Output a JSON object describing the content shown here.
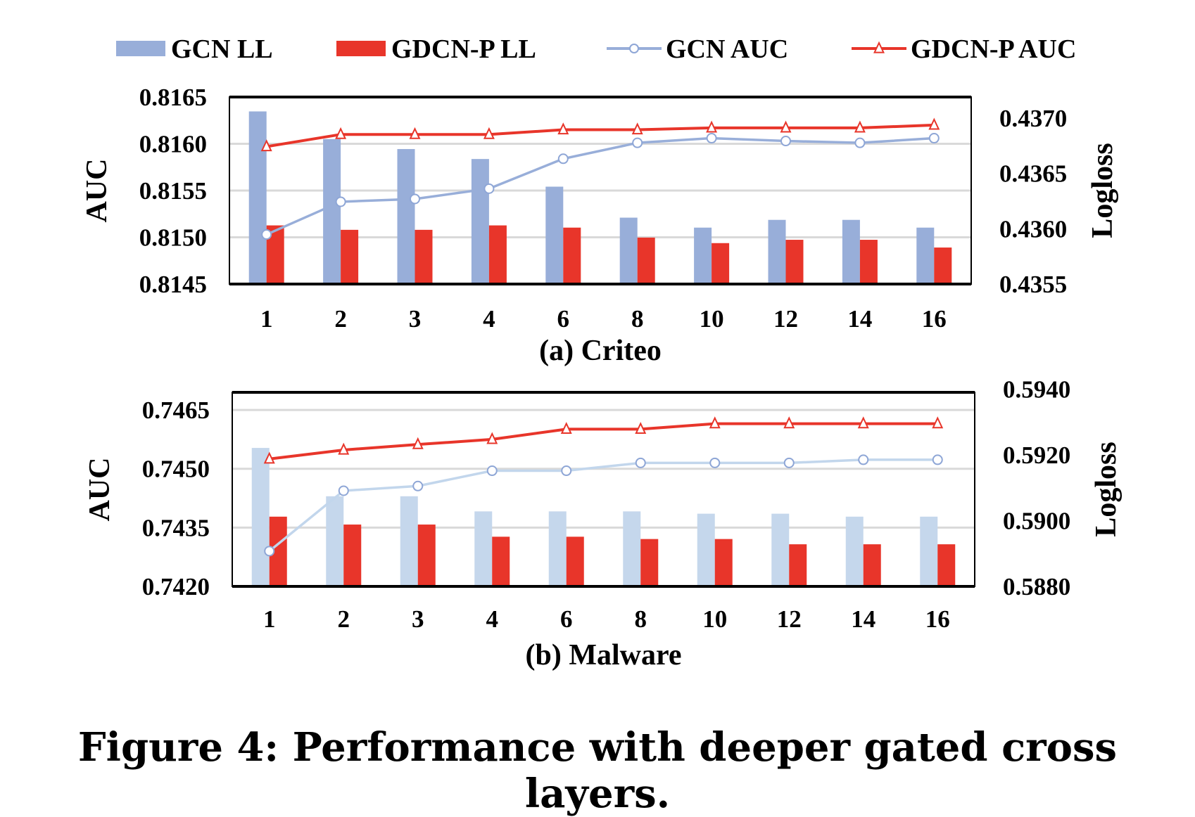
{
  "legend": [
    {
      "name": "GCN LL",
      "kind": "bar",
      "color": "#98aed9"
    },
    {
      "name": "GDCN-P LL",
      "kind": "bar",
      "color": "#e8352a"
    },
    {
      "name": "GCN AUC",
      "kind": "line-circle",
      "color": "#98aed9"
    },
    {
      "name": "GDCN-P AUC",
      "kind": "line-triangle",
      "color": "#e8352a"
    }
  ],
  "caption": "Figure 4: Performance with deeper gated cross layers.",
  "chart_data": [
    {
      "type": "bar+line",
      "title": "(a) Criteo",
      "ylabel": "AUC",
      "y2label": "Logloss",
      "categories": [
        "1",
        "2",
        "3",
        "4",
        "6",
        "8",
        "10",
        "12",
        "14",
        "16"
      ],
      "ylim": [
        0.8145,
        0.8165
      ],
      "yticks": [
        "0.8145",
        "0.8150",
        "0.8155",
        "0.8160",
        "0.8165"
      ],
      "y2lim": [
        0.4355,
        0.43719
      ],
      "y2ticks": [
        "0.4355",
        "0.4360",
        "0.4365",
        "0.4370"
      ],
      "grid": true,
      "bar_colors": [
        "#98aed9",
        "#e8352a"
      ],
      "line_colors": [
        "#98aed9",
        "#e8352a"
      ],
      "bars": [
        {
          "name": "GCN LL",
          "axis": "right",
          "values": [
            0.43706,
            0.43681,
            0.43672,
            0.43663,
            0.43638,
            0.4361,
            0.43601,
            0.43608,
            0.43608,
            0.43601
          ]
        },
        {
          "name": "GDCN-P LL",
          "axis": "right",
          "values": [
            0.43603,
            0.43599,
            0.43599,
            0.43603,
            0.43601,
            0.43592,
            0.43587,
            0.4359,
            0.4359,
            0.43583
          ]
        }
      ],
      "lines": [
        {
          "name": "GCN AUC",
          "axis": "left",
          "marker": "circle",
          "values": [
            0.81503,
            0.81538,
            0.81541,
            0.81552,
            0.81584,
            0.81601,
            0.81606,
            0.81603,
            0.81601,
            0.81606
          ]
        },
        {
          "name": "GDCN-P AUC",
          "axis": "left",
          "marker": "triangle",
          "values": [
            0.81597,
            0.8161,
            0.8161,
            0.8161,
            0.81615,
            0.81615,
            0.81617,
            0.81617,
            0.81617,
            0.8162
          ]
        }
      ]
    },
    {
      "type": "bar+line",
      "title": "(b) Malware",
      "ylabel": "AUC",
      "y2label": "Logloss",
      "categories": [
        "1",
        "2",
        "3",
        "4",
        "6",
        "8",
        "10",
        "12",
        "14",
        "16"
      ],
      "ylim": [
        0.742,
        0.74695
      ],
      "yticks": [
        "0.7420",
        "0.7435",
        "0.7450",
        "0.7465"
      ],
      "y2lim": [
        0.588,
        0.5939
      ],
      "y2ticks": [
        "0.5880",
        "0.5900",
        "0.5920",
        "0.5940"
      ],
      "grid": true,
      "bar_colors": [
        "#c5d7ec",
        "#e8352a"
      ],
      "line_colors": [
        "#c2d6ec",
        "#e8352a"
      ],
      "bars": [
        {
          "name": "GCN LL",
          "axis": "right",
          "values": [
            0.59221,
            0.59074,
            0.59074,
            0.59028,
            0.59028,
            0.59028,
            0.59021,
            0.59021,
            0.59012,
            0.59012
          ]
        },
        {
          "name": "GDCN-P LL",
          "axis": "right",
          "values": [
            0.59012,
            0.58988,
            0.58988,
            0.58951,
            0.58951,
            0.58944,
            0.58944,
            0.58928,
            0.58928,
            0.58928
          ]
        }
      ],
      "lines": [
        {
          "name": "GCN AUC",
          "axis": "left",
          "marker": "circle",
          "values": [
            0.7429,
            0.74444,
            0.74456,
            0.74495,
            0.74495,
            0.74515,
            0.74515,
            0.74515,
            0.74523,
            0.74523
          ]
        },
        {
          "name": "GDCN-P AUC",
          "axis": "left",
          "marker": "triangle",
          "values": [
            0.74525,
            0.74548,
            0.74562,
            0.74575,
            0.74601,
            0.74601,
            0.74615,
            0.74615,
            0.74615,
            0.74615
          ]
        }
      ]
    }
  ]
}
